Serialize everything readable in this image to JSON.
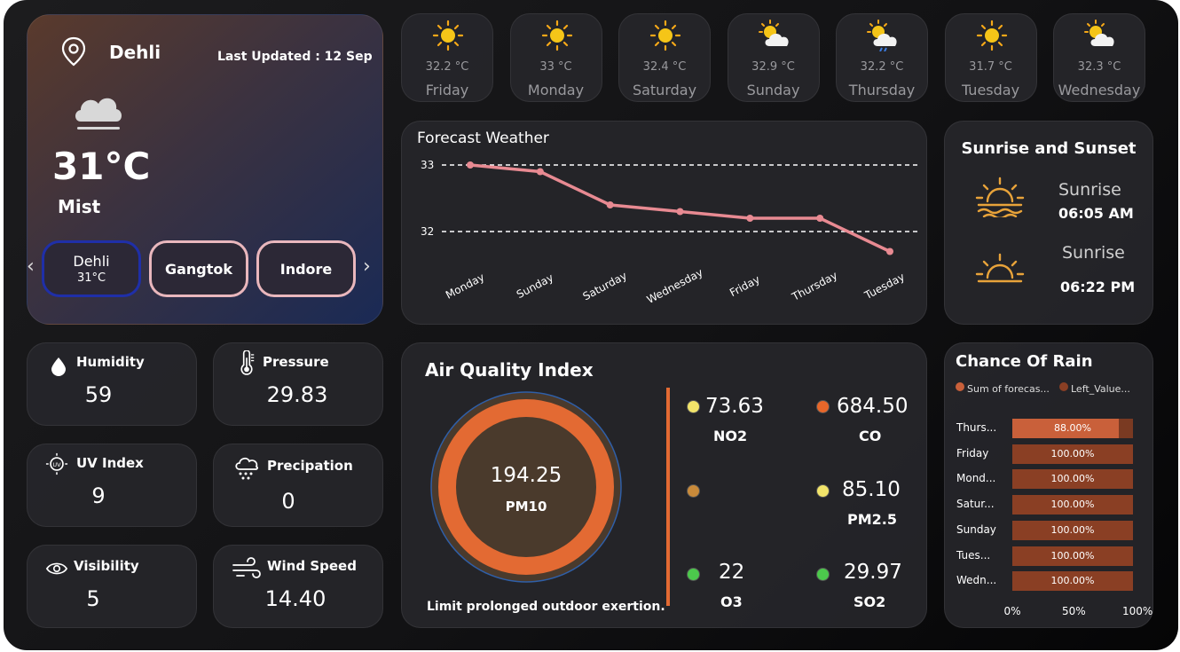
{
  "location": {
    "city": "Dehli",
    "last_updated": "Last Updated : 12 Sep",
    "temperature": "31°C",
    "condition": "Mist",
    "icon": "cloud-mist-icon",
    "cities": [
      {
        "name": "Dehli",
        "temp": "31°C"
      },
      {
        "name": "Gangtok"
      },
      {
        "name": "Indore"
      }
    ],
    "prev_arrow": "‹",
    "next_arrow": "›"
  },
  "forecast_days": [
    {
      "temp": "32.2 °C",
      "day": "Friday",
      "icon": "sun-icon"
    },
    {
      "temp": "33 °C",
      "day": "Monday",
      "icon": "sun-icon"
    },
    {
      "temp": "32.4 °C",
      "day": "Saturday",
      "icon": "sun-icon"
    },
    {
      "temp": "32.9 °C",
      "day": "Sunday",
      "icon": "sun-cloud-icon"
    },
    {
      "temp": "32.2 °C",
      "day": "Thursday",
      "icon": "sun-cloud-rain-icon"
    },
    {
      "temp": "31.7 °C",
      "day": "Tuesday",
      "icon": "sun-icon"
    },
    {
      "temp": "32.3 °C",
      "day": "Wednesday",
      "icon": "sun-cloud-icon"
    }
  ],
  "forecast_chart": {
    "title": "Forecast Weather",
    "chart_data": {
      "type": "line",
      "categories": [
        "Monday",
        "Sunday",
        "Saturday",
        "Wednesday",
        "Friday",
        "Thursday",
        "Tuesday"
      ],
      "values": [
        33.0,
        32.9,
        32.4,
        32.3,
        32.2,
        32.2,
        31.7
      ],
      "yticks": [
        "33",
        "32"
      ],
      "ylim": [
        31.7,
        33.0
      ],
      "grid": true,
      "color": "#e88a92"
    }
  },
  "sun": {
    "title": "Sunrise and Sunset",
    "sunrise_label": "Sunrise",
    "sunrise_time": "06:05 AM",
    "sunset_label": "Sunrise",
    "sunset_time": "06:22 PM",
    "accent": "#e8a33a"
  },
  "metrics": {
    "humidity": {
      "label": "Humidity",
      "value": "59",
      "icon": "droplet-icon"
    },
    "pressure": {
      "label": "Pressure",
      "value": "29.83",
      "icon": "thermometer-icon"
    },
    "uv": {
      "label": "UV Index",
      "value": "9",
      "icon": "uv-icon"
    },
    "precipitation": {
      "label": "Precipation",
      "value": "0",
      "icon": "rain-cloud-icon"
    },
    "visibility": {
      "label": "Visibility",
      "value": "5",
      "icon": "eye-icon"
    },
    "wind": {
      "label": "Wind Speed",
      "value": "14.40",
      "icon": "wind-icon"
    }
  },
  "air_quality": {
    "title": "Air Quality Index",
    "main_value": "194.25",
    "main_label": "PM10",
    "advice": "Limit prolonged outdoor exertion.",
    "pollutants": [
      {
        "value": "73.63",
        "label": "NO2",
        "color": "#f2e46a"
      },
      {
        "value": "684.50",
        "label": "CO",
        "color": "#e8672a"
      },
      {
        "value": "",
        "label": "",
        "color": "#c98a3a"
      },
      {
        "value": "85.10",
        "label": "PM2.5",
        "color": "#f2e46a"
      },
      {
        "value": "22",
        "label": "O3",
        "color": "#4cc94c"
      },
      {
        "value": "29.97",
        "label": "SO2",
        "color": "#4cc94c"
      }
    ],
    "ring_color": "#e36a33"
  },
  "rain": {
    "title": "Chance Of Rain",
    "legend": [
      "Sum of forecas...",
      "Left_Value..."
    ],
    "chart_data": {
      "type": "bar",
      "categories": [
        "Thurs...",
        "Friday",
        "Mond...",
        "Satur...",
        "Sunday",
        "Tues...",
        "Wedn..."
      ],
      "values": [
        88.0,
        100.0,
        100.0,
        100.0,
        100.0,
        100.0,
        100.0
      ],
      "labels": [
        "88.00%",
        "100.00%",
        "100.00%",
        "100.00%",
        "100.00%",
        "100.00%",
        "100.00%"
      ],
      "xticks": [
        "0%",
        "50%",
        "100%"
      ],
      "xlim": [
        0,
        100
      ]
    }
  }
}
